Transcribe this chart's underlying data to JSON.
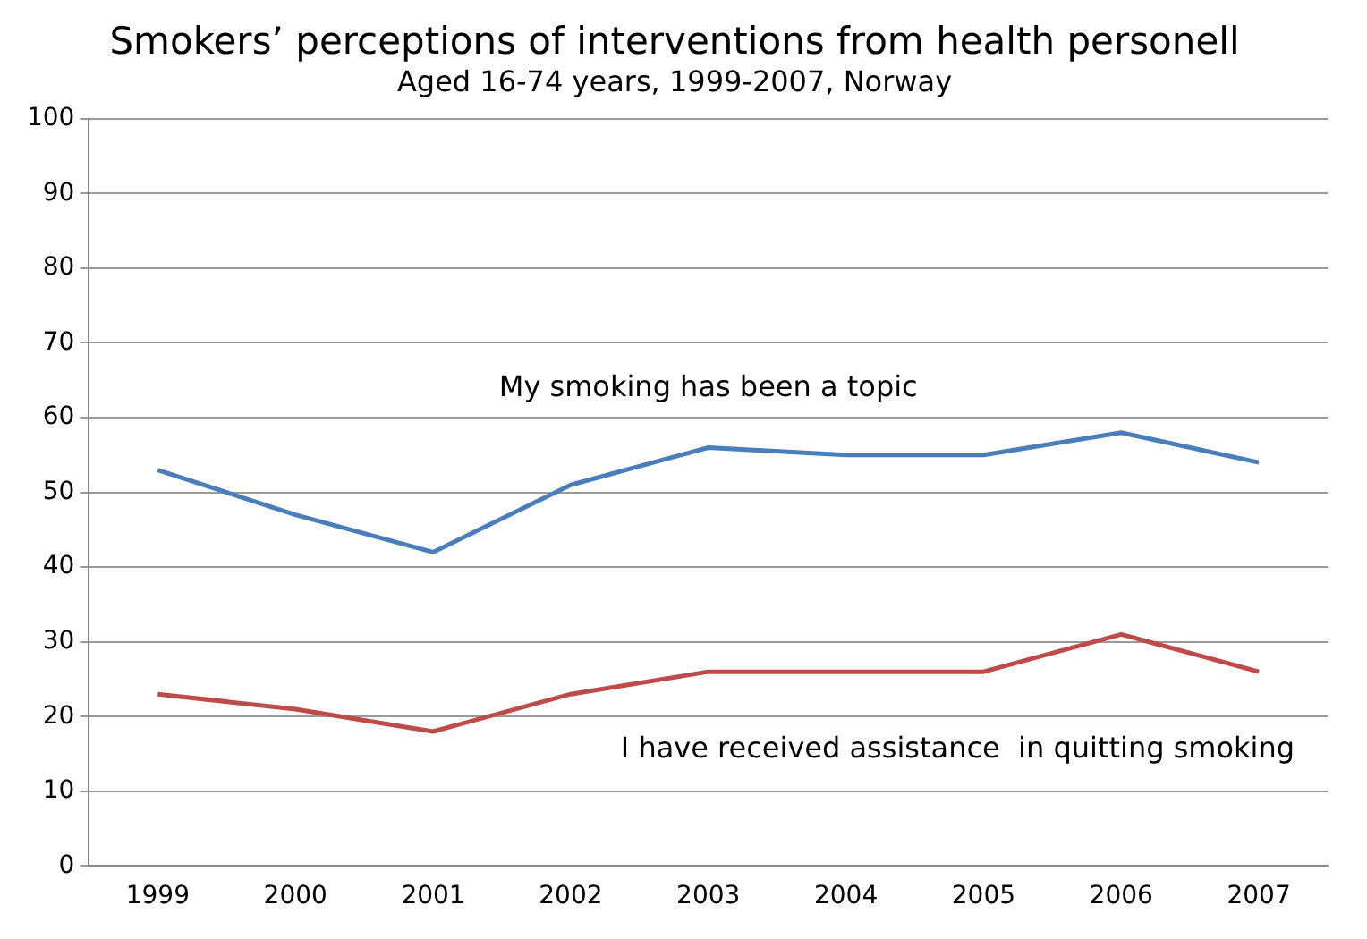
{
  "chart_data": {
    "type": "line",
    "title": "Smokers’ perceptions of interventions from health personell",
    "subtitle": "Aged 16-74 years, 1999-2007, Norway",
    "categories": [
      "1999",
      "2000",
      "2001",
      "2002",
      "2003",
      "2004",
      "2005",
      "2006",
      "2007"
    ],
    "series": [
      {
        "name": "My smoking has been a topic",
        "color": "#4a7ebb",
        "values": [
          53,
          47,
          42,
          51,
          56,
          55,
          55,
          58,
          54
        ]
      },
      {
        "name": "I have received assistance  in quitting smoking",
        "color": "#be4b48",
        "values": [
          23,
          21,
          18,
          23,
          26,
          26,
          26,
          31,
          26
        ]
      }
    ],
    "ylim": [
      0,
      100
    ],
    "yticks": [
      0,
      10,
      20,
      30,
      40,
      50,
      60,
      70,
      80,
      90,
      100
    ],
    "grid": "y",
    "marker": "none",
    "line_style": "solid"
  }
}
